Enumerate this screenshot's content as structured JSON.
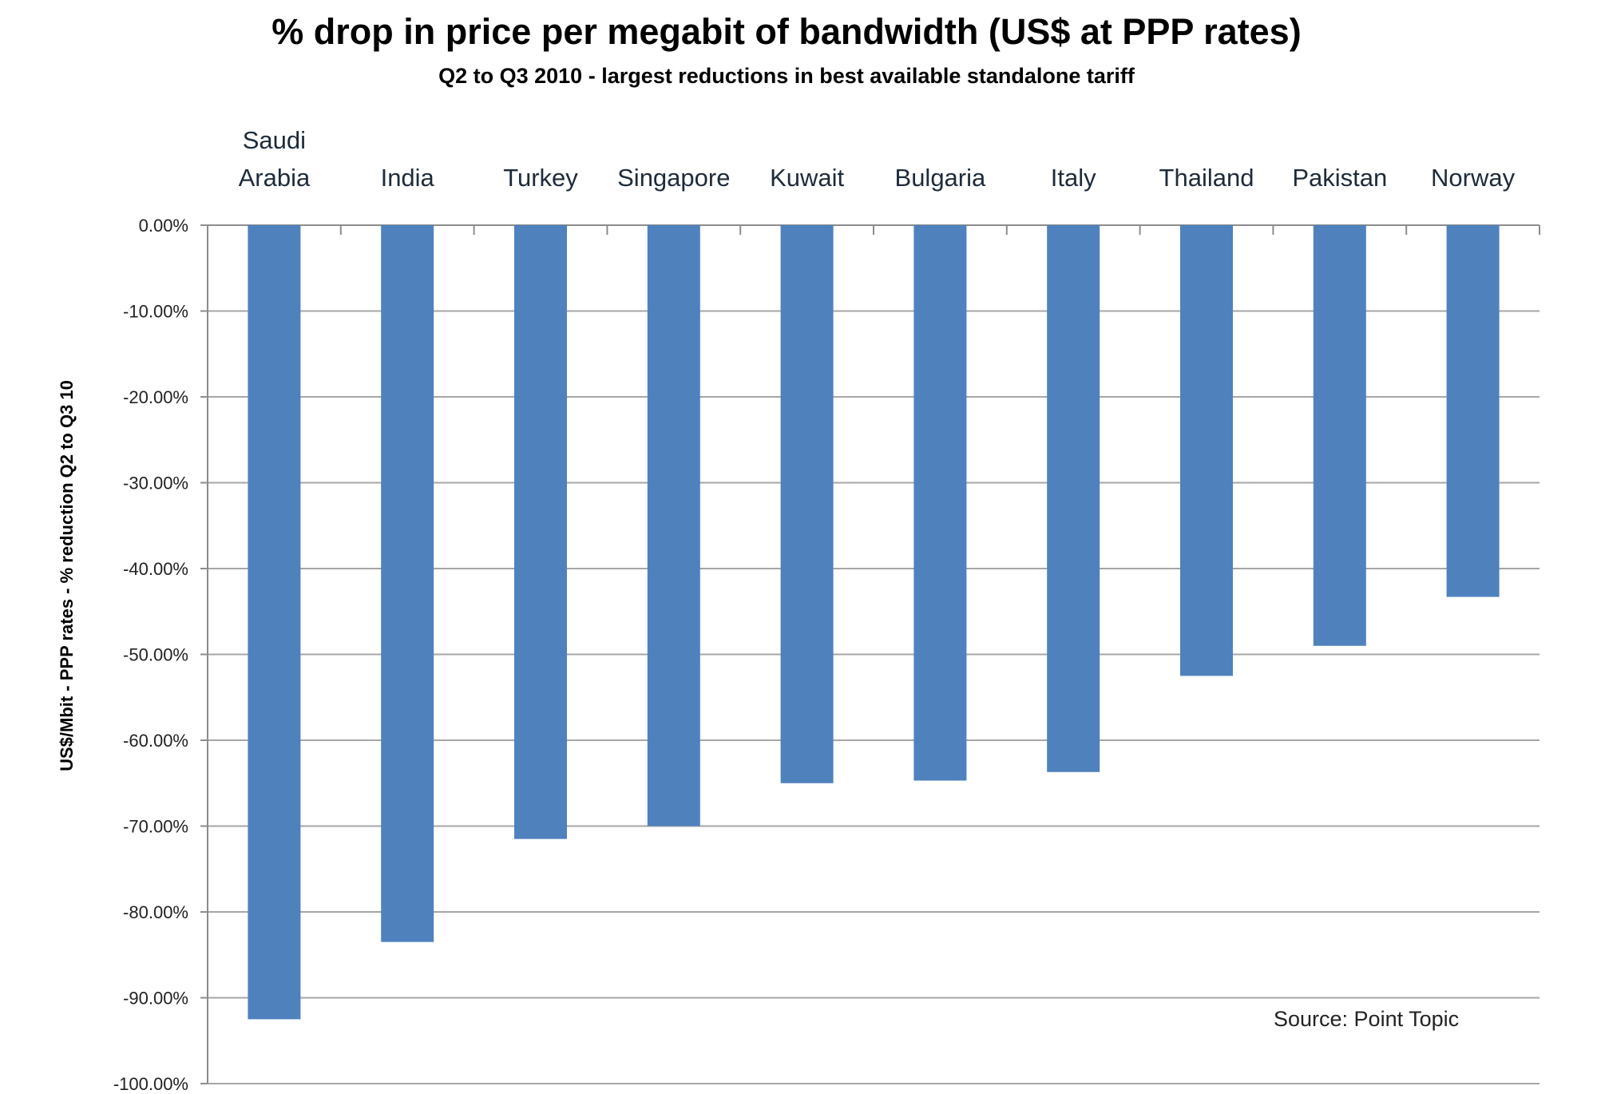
{
  "chart_data": {
    "type": "bar",
    "title": "% drop in price per megabit of bandwidth (US$ at PPP rates)",
    "subtitle": "Q2 to Q3 2010 - largest reductions in best available standalone tariff",
    "ylabel": "US$/Mbit - PPP rates - % reduction Q2 to Q3 10",
    "xlabel": "",
    "categories": [
      "Saudi Arabia",
      "India",
      "Turkey",
      "Singapore",
      "Kuwait",
      "Bulgaria",
      "Italy",
      "Thailand",
      "Pakistan",
      "Norway"
    ],
    "category_lines": [
      [
        "Saudi",
        "Arabia"
      ],
      [
        "India"
      ],
      [
        "Turkey"
      ],
      [
        "Singapore"
      ],
      [
        "Kuwait"
      ],
      [
        "Bulgaria"
      ],
      [
        "Italy"
      ],
      [
        "Thailand"
      ],
      [
        "Pakistan"
      ],
      [
        "Norway"
      ]
    ],
    "values": [
      -92.5,
      -83.5,
      -71.5,
      -70.0,
      -65.0,
      -64.7,
      -63.7,
      -52.5,
      -49.0,
      -43.3
    ],
    "ylim": [
      -100,
      0
    ],
    "yticks": [
      0,
      -10,
      -20,
      -30,
      -40,
      -50,
      -60,
      -70,
      -80,
      -90,
      -100
    ],
    "ytick_labels": [
      "0.00%",
      "-10.00%",
      "-20.00%",
      "-30.00%",
      "-40.00%",
      "-50.00%",
      "-60.00%",
      "-70.00%",
      "-80.00%",
      "-90.00%",
      "-100.00%"
    ],
    "grid": true,
    "bar_color": "#4f81bd",
    "source": "Source: Point Topic"
  }
}
